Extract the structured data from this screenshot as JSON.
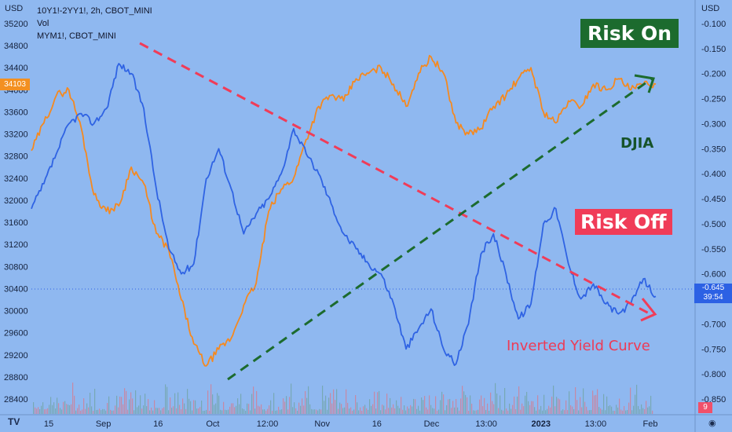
{
  "legend": {
    "line1": "10Y1!-2YY1!, 2h, CBOT_MINI",
    "line2": "Vol",
    "line3": "MYM1!, CBOT_MINI"
  },
  "annotations": {
    "risk_on": "Risk On",
    "risk_off": "Risk Off",
    "djia": "DJIA",
    "inverted": "Inverted Yield Curve"
  },
  "badges": {
    "left_price": "34103",
    "right_price": "-0.645",
    "right_timer": "39:54",
    "vol_count": "9"
  },
  "colors": {
    "background": "#8fb8f0",
    "blue_series": "#2f63e3",
    "orange_series": "#f5891f",
    "risk_on": "#1c6b2e",
    "risk_off": "#f03c58"
  },
  "icons": {
    "logo": "tradingview-logo-icon",
    "eye": "eye-icon"
  },
  "chart_data": {
    "type": "line",
    "x_ticks": [
      "15",
      "Sep",
      "16",
      "Oct",
      "12:00",
      "Nov",
      "16",
      "Dec",
      "13:00",
      "2023",
      "13:00",
      "Feb"
    ],
    "left_axis": {
      "label": "USD",
      "ticks": [
        "35200",
        "34800",
        "34400",
        "34000",
        "33600",
        "33200",
        "32800",
        "32400",
        "32000",
        "31600",
        "31200",
        "30800",
        "30400",
        "30000",
        "29600",
        "29200",
        "28800",
        "28400"
      ],
      "range": [
        28400,
        35200
      ]
    },
    "right_axis": {
      "label": "USD",
      "ticks": [
        "-0.100",
        "-0.150",
        "-0.200",
        "-0.250",
        "-0.300",
        "-0.350",
        "-0.400",
        "-0.450",
        "-0.500",
        "-0.550",
        "-0.600",
        "-0.650",
        "-0.700",
        "-0.750",
        "-0.800",
        "-0.850"
      ],
      "range": [
        -0.85,
        -0.1
      ]
    },
    "series": [
      {
        "name": "10Y1!-2YY1!",
        "axis": "right",
        "x": [
          0.0,
          0.02,
          0.04,
          0.06,
          0.08,
          0.1,
          0.12,
          0.14,
          0.16,
          0.18,
          0.2,
          0.22,
          0.24,
          0.26,
          0.28,
          0.3,
          0.32,
          0.34,
          0.36,
          0.38,
          0.4,
          0.42,
          0.44,
          0.46,
          0.48,
          0.5,
          0.52,
          0.54,
          0.56,
          0.58,
          0.6,
          0.62,
          0.64,
          0.66,
          0.68,
          0.7,
          0.72,
          0.74,
          0.76,
          0.78,
          0.8,
          0.82,
          0.84,
          0.86,
          0.88,
          0.9,
          0.92,
          0.94,
          0.96,
          0.98,
          1.0
        ],
        "values": [
          -0.47,
          -0.42,
          -0.36,
          -0.3,
          -0.28,
          -0.3,
          -0.27,
          -0.18,
          -0.2,
          -0.27,
          -0.43,
          -0.55,
          -0.6,
          -0.58,
          -0.41,
          -0.35,
          -0.43,
          -0.52,
          -0.48,
          -0.45,
          -0.4,
          -0.31,
          -0.36,
          -0.4,
          -0.46,
          -0.52,
          -0.55,
          -0.58,
          -0.6,
          -0.66,
          -0.75,
          -0.71,
          -0.67,
          -0.75,
          -0.78,
          -0.7,
          -0.56,
          -0.52,
          -0.6,
          -0.69,
          -0.66,
          -0.5,
          -0.47,
          -0.58,
          -0.65,
          -0.62,
          -0.66,
          -0.68,
          -0.66,
          -0.61,
          -0.645
        ]
      },
      {
        "name": "MYM1!",
        "axis": "left",
        "x": [
          0.0,
          0.02,
          0.04,
          0.06,
          0.08,
          0.1,
          0.12,
          0.14,
          0.16,
          0.18,
          0.2,
          0.22,
          0.24,
          0.26,
          0.28,
          0.3,
          0.32,
          0.34,
          0.36,
          0.38,
          0.4,
          0.42,
          0.44,
          0.46,
          0.48,
          0.5,
          0.52,
          0.54,
          0.56,
          0.58,
          0.6,
          0.62,
          0.64,
          0.66,
          0.68,
          0.7,
          0.72,
          0.74,
          0.76,
          0.78,
          0.8,
          0.82,
          0.84,
          0.86,
          0.88,
          0.9,
          0.92,
          0.94,
          0.96,
          0.98,
          1.0
        ],
        "values": [
          32900,
          33400,
          33900,
          34000,
          33300,
          32100,
          31800,
          31900,
          32600,
          32300,
          31400,
          31100,
          30200,
          29400,
          29000,
          29300,
          29500,
          30100,
          30500,
          31800,
          32200,
          32400,
          33100,
          33700,
          33900,
          33800,
          34200,
          34300,
          34400,
          34100,
          33700,
          34300,
          34600,
          34300,
          33400,
          33200,
          33300,
          33700,
          33900,
          34200,
          34400,
          33600,
          33400,
          33800,
          33700,
          34100,
          34000,
          34200,
          34000,
          34100,
          34103
        ]
      }
    ],
    "trend_lines": [
      {
        "color": "#f03c58",
        "label": "Risk Off"
      },
      {
        "color": "#1c6b2e",
        "label": "Risk On"
      }
    ]
  }
}
